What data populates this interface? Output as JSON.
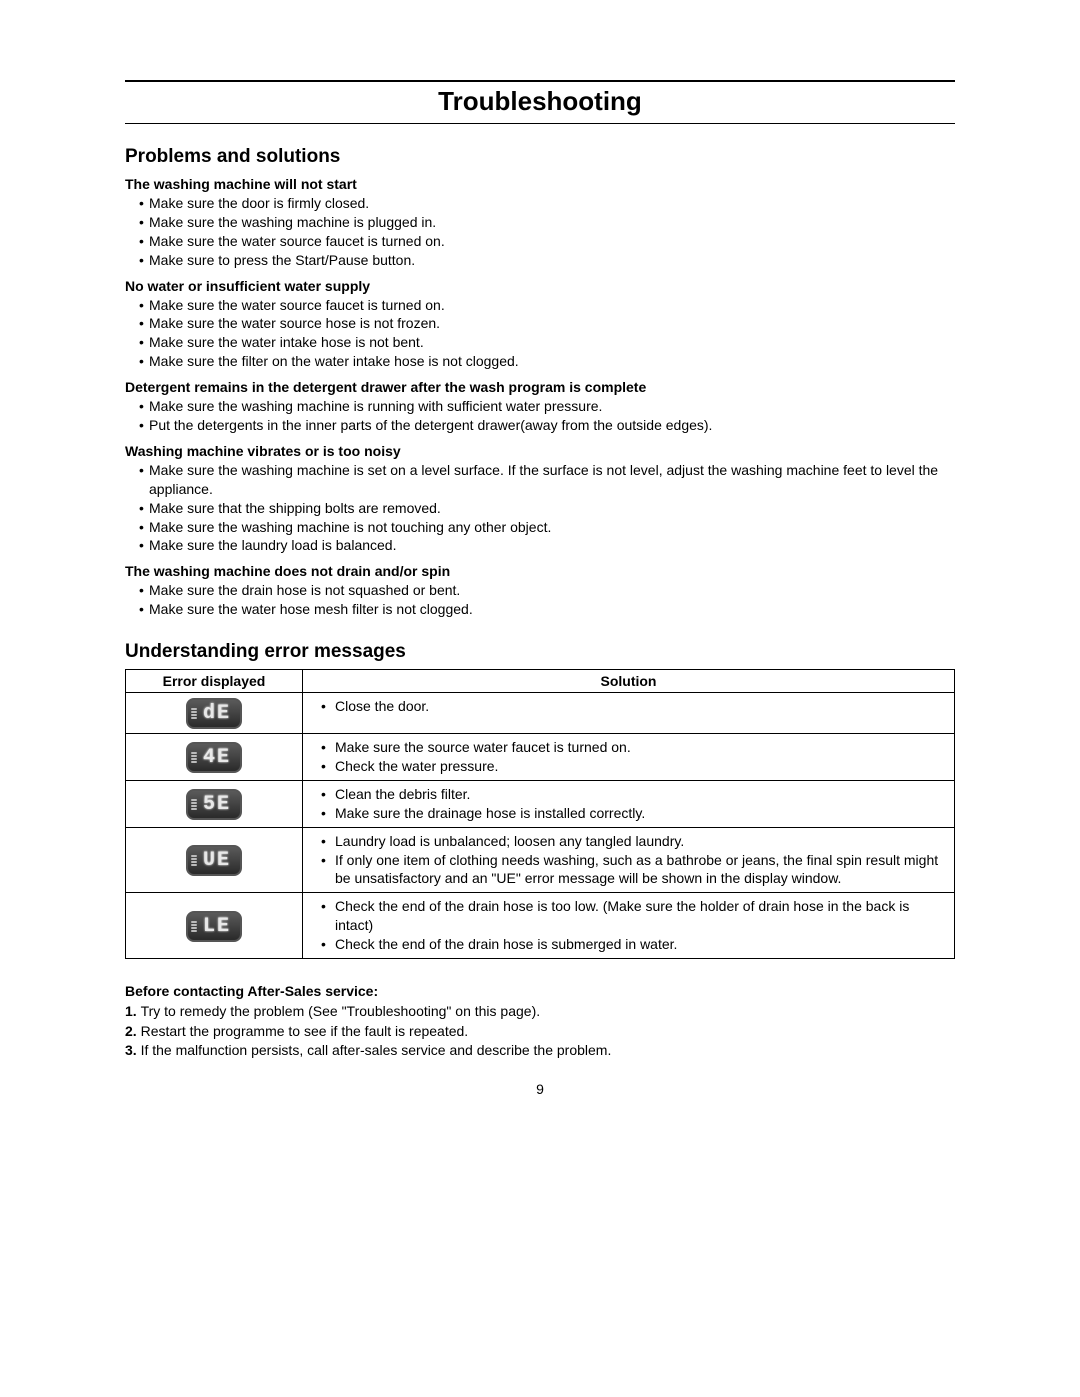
{
  "colors": {
    "text": "#000000",
    "background": "#ffffff",
    "rule": "#000000",
    "display_bg_top": "#5a5a5a",
    "display_bg_bottom": "#2a2a2a",
    "display_text": "#e8e8e8"
  },
  "title": "Troubleshooting",
  "section1_title": "Problems and solutions",
  "problems": [
    {
      "title": "The washing machine will not start",
      "items": [
        "Make sure the door is firmly closed.",
        "Make sure the washing machine is plugged in.",
        "Make sure the water source faucet is turned on.",
        "Make sure to press the Start/Pause button."
      ]
    },
    {
      "title": "No water or insufficient water supply",
      "items": [
        "Make sure the water source faucet is turned on.",
        "Make sure the water source hose is not frozen.",
        "Make sure the water intake hose is not bent.",
        "Make sure the filter on the water intake hose is not clogged."
      ]
    },
    {
      "title": "Detergent remains in the detergent drawer after the wash program is complete",
      "items": [
        "Make sure the washing machine is running with sufficient water pressure.",
        "Put the detergents in the inner parts of the detergent drawer(away from the outside edges)."
      ]
    },
    {
      "title": "Washing machine vibrates or is too noisy",
      "items": [
        "Make sure the washing machine is set on a level surface. If the surface is not level, adjust the washing machine feet to level the appliance.",
        "Make sure that the shipping bolts are removed.",
        "Make sure the washing machine is not touching any other object.",
        "Make sure the laundry load is balanced."
      ]
    },
    {
      "title": "The washing machine does not drain and/or spin",
      "items": [
        "Make sure the drain hose is not squashed or bent.",
        "Make sure the water hose mesh filter is not clogged."
      ]
    }
  ],
  "section2_title": "Understanding error messages",
  "table": {
    "header_error": "Error displayed",
    "header_solution": "Solution",
    "rows": [
      {
        "code": "dE",
        "solutions": [
          "Close the door."
        ]
      },
      {
        "code": "4E",
        "solutions": [
          "Make sure the source water faucet is turned on.",
          "Check the water pressure."
        ]
      },
      {
        "code": "5E",
        "solutions": [
          "Clean the debris filter.",
          "Make sure the drainage hose is installed correctly."
        ]
      },
      {
        "code": "UE",
        "solutions": [
          "Laundry load is unbalanced; loosen any tangled laundry.",
          "If only one item of clothing needs washing, such as a bathrobe or jeans, the final spin result might be unsatisfactory and an \"UE\" error message will be shown in the display window."
        ]
      },
      {
        "code": "LE",
        "solutions": [
          "Check the end of the drain hose is too low. (Make sure the holder of drain hose in the back is intact)",
          "Check the end of the drain hose is submerged in water."
        ]
      }
    ]
  },
  "after_title": "Before contacting After-Sales service:",
  "after_steps": [
    "Try to remedy the problem (See \"Troubleshooting\" on this page).",
    "Restart the programme to see if the fault is repeated.",
    "If the malfunction persists, call after-sales service and describe the problem."
  ],
  "page_number": "9"
}
